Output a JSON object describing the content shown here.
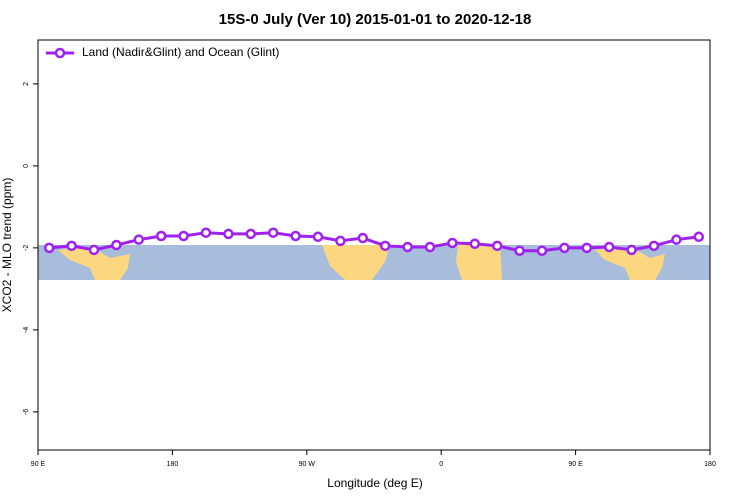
{
  "chart_data": {
    "type": "line",
    "title": "15S-0 July (Ver 10)   2015-01-01 to 2020-12-18",
    "x_label": "Longitude (deg E)",
    "y_label": "XCO2 - MLO trend (ppm)",
    "x": [
      97.5,
      112.5,
      127.5,
      142.5,
      157.5,
      172.5,
      187.5,
      202.5,
      217.5,
      232.5,
      247.5,
      262.5,
      277.5,
      292.5,
      307.5,
      322.5,
      337.5,
      352.5,
      367.5,
      382.5,
      397.5,
      412.5,
      427.5,
      442.5,
      457.5,
      472.5,
      487.5,
      502.5,
      517.5,
      532.5
    ],
    "series": [
      {
        "name": "Land (Nadir&Glint) and Ocean (Glint)",
        "color": "#a020f0",
        "values": [
          -2.0,
          -1.95,
          -2.05,
          -1.93,
          -1.8,
          -1.71,
          -1.71,
          -1.63,
          -1.66,
          -1.66,
          -1.63,
          -1.71,
          -1.73,
          -1.83,
          -1.76,
          -1.95,
          -1.98,
          -1.98,
          -1.88,
          -1.9,
          -1.95,
          -2.07,
          -2.07,
          -2.0,
          -2.0,
          -1.98,
          -2.05,
          -1.95,
          -1.8,
          -1.73
        ]
      }
    ],
    "xlim": [
      90,
      540
    ],
    "ylim": [
      -6.93,
      3.07
    ],
    "xticks": [
      {
        "value": 90,
        "label": "90 E"
      },
      {
        "value": 180,
        "label": "180"
      },
      {
        "value": 270,
        "label": "90 W"
      },
      {
        "value": 360,
        "label": "0"
      },
      {
        "value": 450,
        "label": "90 E"
      },
      {
        "value": 540,
        "label": "180"
      }
    ],
    "yticks": [
      2,
      0,
      -2,
      -4,
      -6
    ],
    "legend": "top-left"
  }
}
